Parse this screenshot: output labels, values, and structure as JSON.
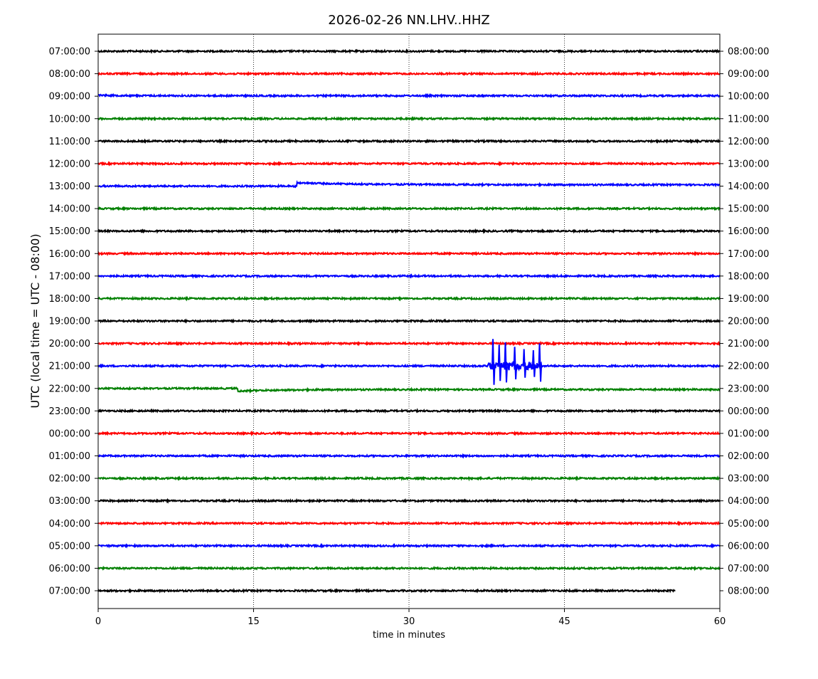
{
  "chart_data": {
    "type": "line",
    "title": "2026-02-26 NN.LHV..HHZ",
    "xlabel": "time in minutes",
    "ylabel": "UTC (local time = UTC - 08:00)",
    "xlim": [
      0,
      60
    ],
    "xticks": [
      "0",
      "15",
      "30",
      "45",
      "60"
    ],
    "grid": "vertical dotted at 15, 30, 45",
    "colors": [
      "#000000",
      "#ff0000",
      "#0000ff",
      "#008000"
    ],
    "rows": [
      {
        "left": "07:00:00",
        "right": "08:00:00"
      },
      {
        "left": "08:00:00",
        "right": "09:00:00"
      },
      {
        "left": "09:00:00",
        "right": "10:00:00"
      },
      {
        "left": "10:00:00",
        "right": "11:00:00"
      },
      {
        "left": "11:00:00",
        "right": "12:00:00"
      },
      {
        "left": "12:00:00",
        "right": "13:00:00"
      },
      {
        "left": "13:00:00",
        "right": "14:00:00"
      },
      {
        "left": "14:00:00",
        "right": "15:00:00"
      },
      {
        "left": "15:00:00",
        "right": "16:00:00"
      },
      {
        "left": "16:00:00",
        "right": "17:00:00"
      },
      {
        "left": "17:00:00",
        "right": "18:00:00"
      },
      {
        "left": "18:00:00",
        "right": "19:00:00"
      },
      {
        "left": "19:00:00",
        "right": "20:00:00"
      },
      {
        "left": "20:00:00",
        "right": "21:00:00"
      },
      {
        "left": "21:00:00",
        "right": "22:00:00"
      },
      {
        "left": "22:00:00",
        "right": "23:00:00"
      },
      {
        "left": "23:00:00",
        "right": "00:00:00"
      },
      {
        "left": "00:00:00",
        "right": "01:00:00"
      },
      {
        "left": "01:00:00",
        "right": "02:00:00"
      },
      {
        "left": "02:00:00",
        "right": "03:00:00"
      },
      {
        "left": "03:00:00",
        "right": "04:00:00"
      },
      {
        "left": "04:00:00",
        "right": "05:00:00"
      },
      {
        "left": "05:00:00",
        "right": "06:00:00"
      },
      {
        "left": "06:00:00",
        "right": "07:00:00"
      },
      {
        "left": "07:00:00",
        "right": "08:00:00"
      }
    ],
    "data_end_minute_last_row": 55.7,
    "events": [
      {
        "row": 6,
        "type": "step",
        "minute": 19.2,
        "offset": 0.15,
        "decay_minutes": 6
      },
      {
        "row": 15,
        "type": "step",
        "minute": 13.5,
        "offset": -0.12,
        "decay_minutes": 4
      },
      {
        "row": 2,
        "type": "step",
        "minute": 0,
        "offset": 0.05,
        "decay_minutes": 2
      },
      {
        "row": 14,
        "type": "burst",
        "minute_start": 37.6,
        "minute_end": 42.8,
        "spikes_minutes": [
          38.1,
          38.7,
          39.3,
          40.2,
          41.1,
          42.0,
          42.6
        ],
        "spike_amplitudes": [
          1.2,
          0.95,
          1.05,
          0.85,
          0.75,
          0.7,
          1.0
        ]
      }
    ]
  }
}
